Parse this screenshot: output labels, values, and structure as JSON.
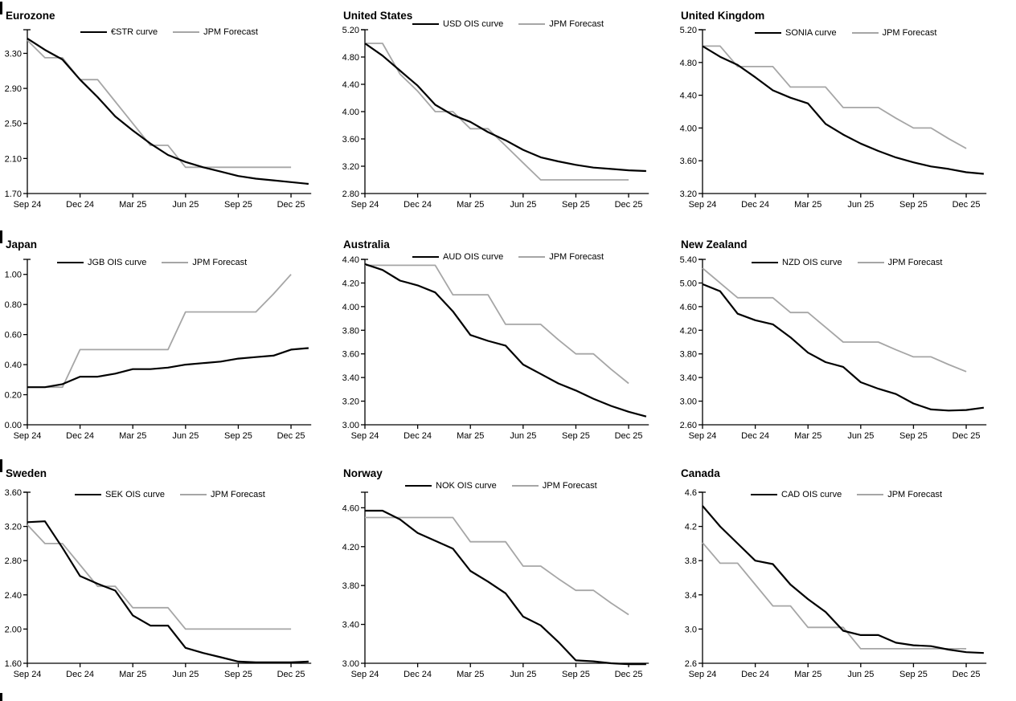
{
  "colors": {
    "curve": "#000000",
    "forecast": "#a6a6a6",
    "axis": "#000000",
    "background": "#ffffff"
  },
  "chart_data": [
    {
      "type": "line",
      "title": "Eurozone",
      "section_bar": true,
      "x_ticks": [
        "Sep 24",
        "Dec 24",
        "Mar 25",
        "Jun 25",
        "Sep 25",
        "Dec 25"
      ],
      "x_tick_months": [
        0,
        3,
        6,
        9,
        12,
        15
      ],
      "ylim": [
        1.7,
        3.57
      ],
      "ytick_labels": [
        "1.70",
        "2.10",
        "2.50",
        "2.90",
        "3.30"
      ],
      "grid": false,
      "legend_position": "top-center-inside",
      "series": [
        {
          "name": "€STR curve",
          "role": "market-curve",
          "color_key": "curve",
          "values": [
            3.47,
            3.34,
            3.23,
            3.0,
            2.8,
            2.58,
            2.42,
            2.27,
            2.14,
            2.06,
            2.0,
            1.95,
            1.9,
            1.87,
            1.85,
            1.83,
            1.81
          ]
        },
        {
          "name": "JPM Forecast",
          "role": "forecast",
          "color_key": "forecast",
          "values": [
            3.45,
            3.25,
            3.25,
            3.0,
            3.0,
            2.75,
            2.5,
            2.25,
            2.25,
            2.0,
            2.0,
            2.0,
            2.0,
            2.0,
            2.0,
            2.0
          ]
        }
      ]
    },
    {
      "type": "line",
      "title": "United States",
      "section_bar": false,
      "x_ticks": [
        "Sep 24",
        "Dec 24",
        "Mar 25",
        "Jun 25",
        "Sep 25",
        "Dec 25"
      ],
      "x_tick_months": [
        0,
        3,
        6,
        9,
        12,
        15
      ],
      "ylim": [
        2.8,
        5.2
      ],
      "ytick_labels": [
        "2.80",
        "3.20",
        "3.60",
        "4.00",
        "4.40",
        "4.80",
        "5.20"
      ],
      "grid": false,
      "legend_position": "top-center-inside",
      "series": [
        {
          "name": "USD OIS curve",
          "role": "market-curve",
          "color_key": "curve",
          "values": [
            5.0,
            4.82,
            4.6,
            4.38,
            4.1,
            3.95,
            3.85,
            3.7,
            3.58,
            3.44,
            3.33,
            3.27,
            3.22,
            3.18,
            3.16,
            3.14,
            3.13
          ]
        },
        {
          "name": "JPM Forecast",
          "role": "forecast",
          "color_key": "forecast",
          "values": [
            5.0,
            5.0,
            4.55,
            4.3,
            4.0,
            4.0,
            3.75,
            3.75,
            3.5,
            3.25,
            3.0,
            3.0,
            3.0,
            3.0,
            3.0,
            3.0
          ]
        }
      ]
    },
    {
      "type": "line",
      "title": "United Kingdom",
      "section_bar": false,
      "x_ticks": [
        "Sep 24",
        "Dec 24",
        "Mar 25",
        "Jun 25",
        "Sep 25",
        "Dec 25"
      ],
      "x_tick_months": [
        0,
        3,
        6,
        9,
        12,
        15
      ],
      "ylim": [
        3.2,
        5.2
      ],
      "ytick_labels": [
        "3.20",
        "3.60",
        "4.00",
        "4.40",
        "4.80",
        "5.20"
      ],
      "grid": false,
      "legend_position": "top-center-inside",
      "series": [
        {
          "name": "SONIA curve",
          "role": "market-curve",
          "color_key": "curve",
          "values": [
            5.0,
            4.87,
            4.77,
            4.62,
            4.46,
            4.37,
            4.3,
            4.05,
            3.92,
            3.81,
            3.72,
            3.64,
            3.58,
            3.53,
            3.5,
            3.46,
            3.44
          ]
        },
        {
          "name": "JPM Forecast",
          "role": "forecast",
          "color_key": "forecast",
          "values": [
            5.0,
            5.0,
            4.75,
            4.75,
            4.75,
            4.5,
            4.5,
            4.5,
            4.25,
            4.25,
            4.25,
            4.12,
            4.0,
            4.0,
            3.87,
            3.75
          ]
        }
      ]
    },
    {
      "type": "line",
      "title": "Japan",
      "section_bar": true,
      "x_ticks": [
        "Sep 24",
        "Dec 24",
        "Mar 25",
        "Jun 25",
        "Sep 25",
        "Dec 25"
      ],
      "x_tick_months": [
        0,
        3,
        6,
        9,
        12,
        15
      ],
      "ylim": [
        0.0,
        1.1
      ],
      "ytick_labels": [
        "0.00",
        "0.20",
        "0.40",
        "0.60",
        "0.80",
        "1.00"
      ],
      "grid": false,
      "legend_position": "top-center-inside",
      "series": [
        {
          "name": "JGB OIS curve",
          "role": "market-curve",
          "color_key": "curve",
          "values": [
            0.25,
            0.25,
            0.27,
            0.32,
            0.32,
            0.34,
            0.37,
            0.37,
            0.38,
            0.4,
            0.41,
            0.42,
            0.44,
            0.45,
            0.46,
            0.5,
            0.51
          ]
        },
        {
          "name": "JPM Forecast",
          "role": "forecast",
          "color_key": "forecast",
          "values": [
            0.25,
            0.25,
            0.25,
            0.5,
            0.5,
            0.5,
            0.5,
            0.5,
            0.5,
            0.75,
            0.75,
            0.75,
            0.75,
            0.75,
            0.87,
            1.0
          ]
        }
      ]
    },
    {
      "type": "line",
      "title": "Australia",
      "section_bar": false,
      "x_ticks": [
        "Sep 24",
        "Dec 24",
        "Mar 25",
        "Jun 25",
        "Sep 25",
        "Dec 25"
      ],
      "x_tick_months": [
        0,
        3,
        6,
        9,
        12,
        15
      ],
      "ylim": [
        3.0,
        4.4
      ],
      "ytick_labels": [
        "3.00",
        "3.20",
        "3.40",
        "3.60",
        "3.80",
        "4.00",
        "4.20",
        "4.40"
      ],
      "grid": false,
      "legend_position": "top-center-inside",
      "series": [
        {
          "name": "AUD OIS curve",
          "role": "market-curve",
          "color_key": "curve",
          "values": [
            4.36,
            4.31,
            4.22,
            4.18,
            4.12,
            3.96,
            3.76,
            3.71,
            3.67,
            3.51,
            3.43,
            3.35,
            3.29,
            3.22,
            3.16,
            3.11,
            3.07
          ]
        },
        {
          "name": "JPM Forecast",
          "role": "forecast",
          "color_key": "forecast",
          "values": [
            4.35,
            4.35,
            4.35,
            4.35,
            4.35,
            4.1,
            4.1,
            4.1,
            3.85,
            3.85,
            3.85,
            3.72,
            3.6,
            3.6,
            3.47,
            3.35
          ]
        }
      ]
    },
    {
      "type": "line",
      "title": "New Zealand",
      "section_bar": false,
      "x_ticks": [
        "Sep 24",
        "Dec 24",
        "Mar 25",
        "Jun 25",
        "Sep 25",
        "Dec 25"
      ],
      "x_tick_months": [
        0,
        3,
        6,
        9,
        12,
        15
      ],
      "ylim": [
        2.6,
        5.4
      ],
      "ytick_labels": [
        "2.60",
        "3.00",
        "3.40",
        "3.80",
        "4.20",
        "4.60",
        "5.00",
        "5.40"
      ],
      "grid": false,
      "legend_position": "top-center-inside",
      "series": [
        {
          "name": "NZD OIS curve",
          "role": "market-curve",
          "color_key": "curve",
          "values": [
            4.98,
            4.86,
            4.48,
            4.37,
            4.3,
            4.08,
            3.82,
            3.66,
            3.58,
            3.32,
            3.21,
            3.12,
            2.96,
            2.86,
            2.84,
            2.85,
            2.89
          ]
        },
        {
          "name": "JPM Forecast",
          "role": "forecast",
          "color_key": "forecast",
          "values": [
            5.25,
            5.0,
            4.75,
            4.75,
            4.75,
            4.5,
            4.5,
            4.25,
            4.0,
            4.0,
            4.0,
            3.87,
            3.75,
            3.75,
            3.62,
            3.5
          ]
        }
      ]
    },
    {
      "type": "line",
      "title": "Sweden",
      "section_bar": true,
      "x_ticks": [
        "Sep 24",
        "Dec 24",
        "Mar 25",
        "Jun 25",
        "Sep 25",
        "Dec 25"
      ],
      "x_tick_months": [
        0,
        3,
        6,
        9,
        12,
        15
      ],
      "ylim": [
        1.6,
        3.6
      ],
      "ytick_labels": [
        "1.60",
        "2.00",
        "2.40",
        "2.80",
        "3.20",
        "3.60"
      ],
      "grid": false,
      "legend_position": "top-center-inside",
      "series": [
        {
          "name": "SEK OIS curve",
          "role": "market-curve",
          "color_key": "curve",
          "values": [
            3.25,
            3.26,
            2.95,
            2.62,
            2.53,
            2.45,
            2.16,
            2.04,
            2.04,
            1.78,
            1.72,
            1.67,
            1.62,
            1.61,
            1.61,
            1.61,
            1.62
          ]
        },
        {
          "name": "JPM Forecast",
          "role": "forecast",
          "color_key": "forecast",
          "values": [
            3.22,
            3.0,
            3.0,
            2.75,
            2.5,
            2.5,
            2.25,
            2.25,
            2.25,
            2.0,
            2.0,
            2.0,
            2.0,
            2.0,
            2.0,
            2.0
          ]
        }
      ]
    },
    {
      "type": "line",
      "title": "Norway",
      "section_bar": false,
      "x_ticks": [
        "Sep 24",
        "Dec 24",
        "Mar 25",
        "Jun 25",
        "Sep 25",
        "Dec 25"
      ],
      "x_tick_months": [
        0,
        3,
        6,
        9,
        12,
        15
      ],
      "ylim": [
        3.0,
        4.76
      ],
      "ytick_labels": [
        "3.00",
        "3.40",
        "3.80",
        "4.20",
        "4.60"
      ],
      "grid": false,
      "legend_position": "top-center-inside",
      "series": [
        {
          "name": "NOK OIS curve",
          "role": "market-curve",
          "color_key": "curve",
          "values": [
            4.57,
            4.57,
            4.48,
            4.34,
            4.26,
            4.18,
            3.95,
            3.84,
            3.72,
            3.48,
            3.39,
            3.22,
            3.03,
            3.02,
            3.0,
            2.99,
            2.99
          ]
        },
        {
          "name": "JPM Forecast",
          "role": "forecast",
          "color_key": "forecast",
          "values": [
            4.5,
            4.5,
            4.5,
            4.5,
            4.5,
            4.5,
            4.25,
            4.25,
            4.25,
            4.0,
            4.0,
            3.87,
            3.75,
            3.75,
            3.62,
            3.5
          ]
        }
      ]
    },
    {
      "type": "line",
      "title": "Canada",
      "section_bar": false,
      "x_ticks": [
        "Sep 24",
        "Dec 24",
        "Mar 25",
        "Jun 25",
        "Sep 25",
        "Dec 25"
      ],
      "x_tick_months": [
        0,
        3,
        6,
        9,
        12,
        15
      ],
      "ylim": [
        2.6,
        4.6
      ],
      "ytick_labels": [
        "2.6",
        "3.0",
        "3.4",
        "3.8",
        "4.2",
        "4.6"
      ],
      "grid": false,
      "legend_position": "top-center-inside",
      "series": [
        {
          "name": "CAD OIS curve",
          "role": "market-curve",
          "color_key": "curve",
          "values": [
            4.44,
            4.2,
            4.0,
            3.8,
            3.76,
            3.52,
            3.35,
            3.2,
            2.98,
            2.93,
            2.93,
            2.84,
            2.81,
            2.8,
            2.76,
            2.73,
            2.72
          ]
        },
        {
          "name": "JPM Forecast",
          "role": "forecast",
          "color_key": "forecast",
          "values": [
            4.01,
            3.77,
            3.77,
            3.52,
            3.27,
            3.27,
            3.02,
            3.02,
            3.02,
            2.77,
            2.77,
            2.77,
            2.77,
            2.77,
            2.77,
            2.77
          ]
        }
      ]
    }
  ],
  "footer": {
    "partial_section_bar": true
  }
}
